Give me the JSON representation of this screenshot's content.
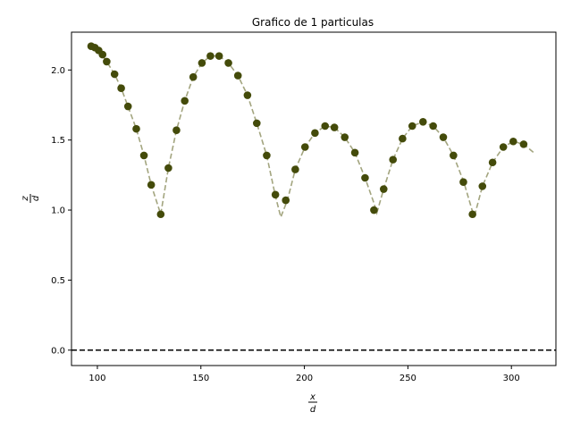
{
  "chart_data": {
    "type": "scatter",
    "title": "Grafico de 1 particulas",
    "xlabel": {
      "numerator": "x",
      "denominator": "d"
    },
    "ylabel": {
      "numerator": "z",
      "denominator": "d"
    },
    "xlim": [
      87.5,
      321.5
    ],
    "ylim": [
      -0.11,
      2.27
    ],
    "xticks": [
      100,
      150,
      200,
      250,
      300
    ],
    "yticks": [
      0.0,
      0.5,
      1.0,
      1.5,
      2.0
    ],
    "xtick_labels": [
      "100",
      "150",
      "200",
      "250",
      "300"
    ],
    "ytick_labels": [
      "0.0",
      "0.5",
      "1.0",
      "1.5",
      "2.0"
    ],
    "grid": false,
    "colors": {
      "points": "#444b0a",
      "trajectory": "#a3a57f",
      "reference": "#000000"
    },
    "reference_line": {
      "y": 0.0,
      "style": "dashed"
    },
    "trajectory": {
      "style": "dashed",
      "x": [
        97.0,
        100.6,
        104.5,
        108.3,
        111.5,
        114.8,
        118.8,
        122.5,
        126.0,
        130.6,
        134.3,
        138.2,
        142.2,
        146.3,
        150.5,
        154.6,
        158.8,
        163.3,
        167.9,
        172.5,
        177.0,
        181.8,
        186.0,
        188.6,
        191.8,
        195.6,
        200.3,
        205.1,
        210.0,
        214.5,
        219.5,
        224.4,
        229.3,
        233.6,
        235.0,
        238.3,
        242.8,
        247.4,
        252.1,
        257.3,
        262.2,
        267.1,
        272.0,
        277.0,
        281.0,
        282.2,
        286.0,
        290.9,
        296.1,
        300.9,
        305.9,
        310.8
      ],
      "y": [
        2.17,
        2.14,
        2.06,
        1.97,
        1.87,
        1.74,
        1.58,
        1.39,
        1.18,
        0.97,
        1.3,
        1.57,
        1.78,
        1.95,
        2.05,
        2.1,
        2.1,
        2.05,
        1.96,
        1.82,
        1.62,
        1.39,
        1.1,
        0.95,
        1.07,
        1.29,
        1.45,
        1.55,
        1.6,
        1.59,
        1.52,
        1.41,
        1.23,
        1.05,
        0.98,
        1.15,
        1.36,
        1.51,
        1.6,
        1.63,
        1.6,
        1.52,
        1.39,
        1.2,
        1.0,
        0.96,
        1.17,
        1.34,
        1.45,
        1.49,
        1.47,
        1.41
      ]
    },
    "series": [
      {
        "x": [
          97.0,
          98.8,
          100.6,
          102.5,
          104.5,
          108.3,
          111.5,
          114.8,
          118.8,
          122.5,
          126.0,
          130.6,
          134.3,
          138.2,
          142.2,
          146.3,
          150.5,
          154.6,
          158.8,
          163.3,
          167.9,
          172.5,
          177.0,
          181.8,
          186.0,
          191.0,
          195.6,
          200.3,
          205.1,
          210.0,
          214.5,
          219.5,
          224.4,
          229.3,
          233.6,
          238.3,
          242.8,
          247.4,
          252.1,
          257.3,
          262.2,
          267.1,
          272.0,
          276.8,
          281.2,
          286.0,
          290.9,
          296.1,
          300.9,
          305.9
        ],
        "y": [
          2.17,
          2.16,
          2.14,
          2.11,
          2.06,
          1.97,
          1.87,
          1.74,
          1.58,
          1.39,
          1.18,
          0.97,
          1.3,
          1.57,
          1.78,
          1.95,
          2.05,
          2.1,
          2.1,
          2.05,
          1.96,
          1.82,
          1.62,
          1.39,
          1.11,
          1.07,
          1.29,
          1.45,
          1.55,
          1.6,
          1.59,
          1.52,
          1.41,
          1.23,
          1.0,
          1.15,
          1.36,
          1.51,
          1.6,
          1.63,
          1.6,
          1.52,
          1.39,
          1.2,
          0.97,
          1.17,
          1.34,
          1.45,
          1.49,
          1.47
        ]
      }
    ]
  }
}
